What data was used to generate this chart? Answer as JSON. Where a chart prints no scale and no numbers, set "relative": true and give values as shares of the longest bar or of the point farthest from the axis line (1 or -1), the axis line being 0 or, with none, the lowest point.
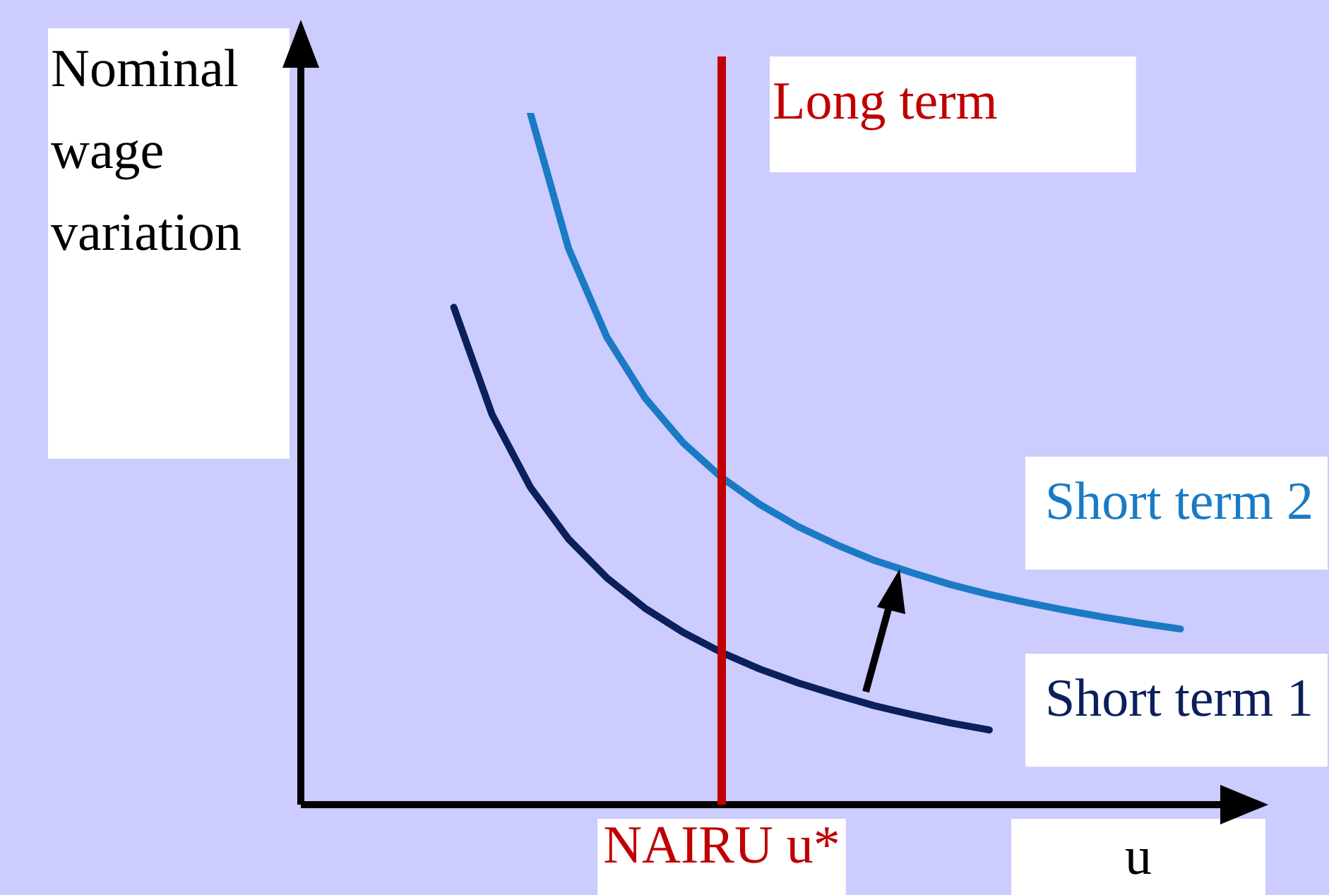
{
  "chart_data": {
    "type": "line",
    "relative": true,
    "xlabel": "u",
    "ylabel": "Nominal wage variation",
    "legend": false,
    "grid": false,
    "marker": "none",
    "line_style": "solid",
    "annotations": [
      "Long term",
      "NAIRU u*"
    ],
    "categories": [
      null,
      null,
      null,
      null,
      null,
      null,
      null,
      null,
      null,
      null,
      null,
      null,
      null,
      null,
      null,
      null,
      null,
      null,
      null,
      null,
      null,
      null,
      null,
      null,
      null,
      null
    ],
    "series": [
      {
        "name": "Short term 1",
        "color": "#0a1f5c",
        "values": [
          null,
          null,
          null,
          null,
          0.719,
          0.564,
          0.459,
          0.384,
          0.328,
          0.284,
          0.249,
          0.22,
          0.196,
          0.176,
          0.159,
          0.143,
          0.13,
          0.118,
          0.108,
          null,
          null,
          null,
          null,
          null,
          null,
          null
        ]
      },
      {
        "name": "Short term 2",
        "color": "#1a7ac4",
        "values": [
          null,
          null,
          null,
          null,
          null,
          null,
          1,
          0.804,
          0.676,
          0.588,
          0.523,
          0.473,
          0.434,
          0.402,
          0.376,
          0.353,
          0.335,
          0.318,
          0.304,
          0.292,
          0.281,
          0.271,
          0.262,
          0.254,
          null,
          null
        ]
      }
    ]
  }
}
